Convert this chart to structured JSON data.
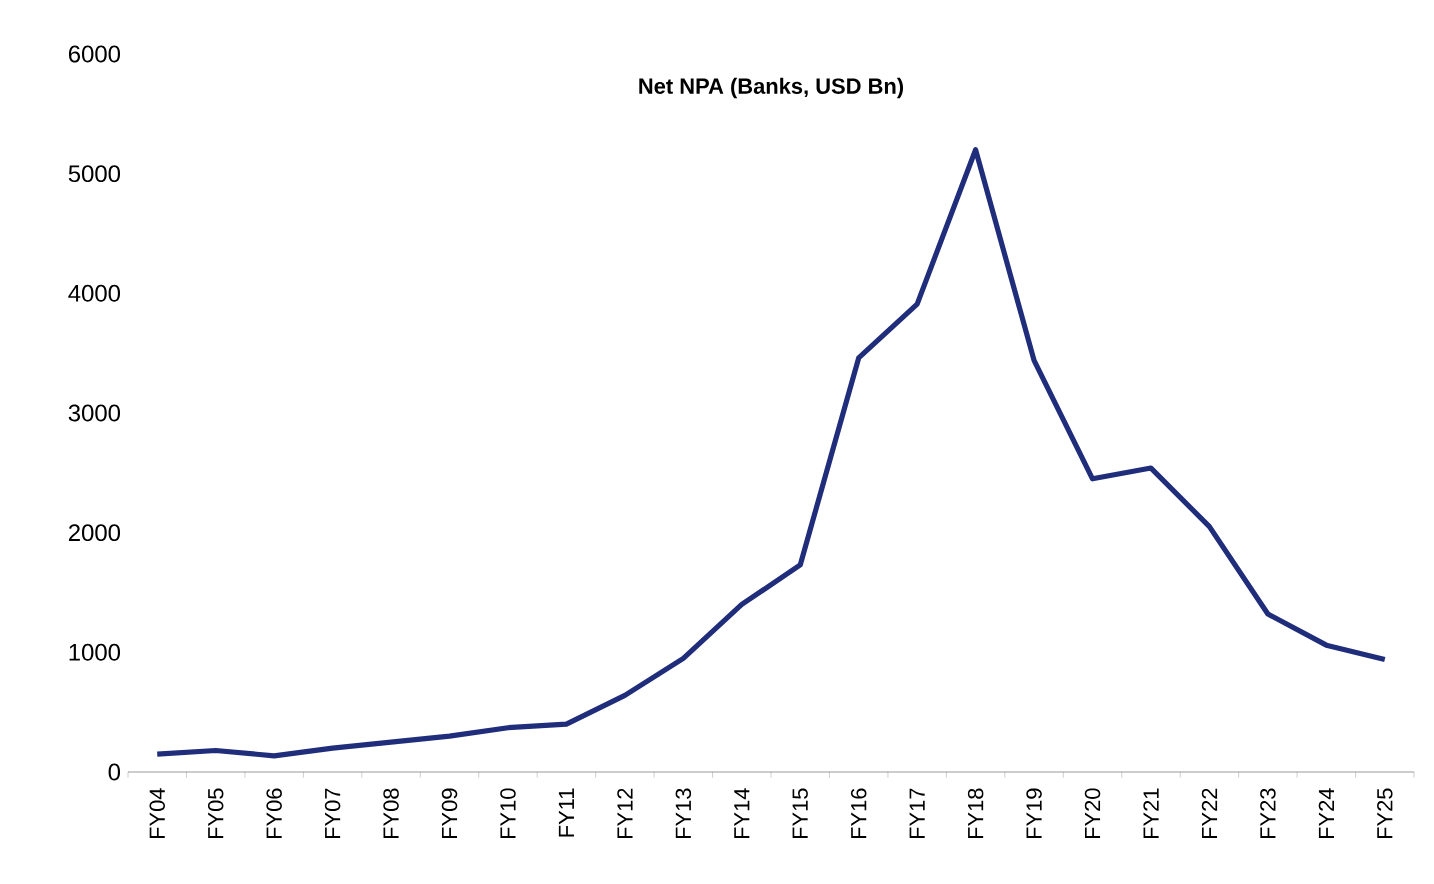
{
  "chart_data": {
    "type": "line",
    "title": "Net NPA (Banks, USD Bn)",
    "categories": [
      "FY04",
      "FY05",
      "FY06",
      "FY07",
      "FY08",
      "FY09",
      "FY10",
      "FY11",
      "FY12",
      "FY13",
      "FY14",
      "FY15",
      "FY16",
      "FY17",
      "FY18",
      "FY19",
      "FY20",
      "FY21",
      "FY22",
      "FY23",
      "FY24",
      "FY25"
    ],
    "values": [
      150,
      180,
      135,
      200,
      250,
      300,
      370,
      400,
      640,
      950,
      1400,
      1730,
      3460,
      3910,
      5200,
      3440,
      2450,
      2540,
      2050,
      1320,
      1060,
      940
    ],
    "color": "#1f2d7b",
    "ylim": [
      0,
      6000
    ],
    "yticks": [
      0,
      1000,
      2000,
      3000,
      4000,
      5000,
      6000
    ],
    "marker": "none",
    "line_style": "solid"
  }
}
